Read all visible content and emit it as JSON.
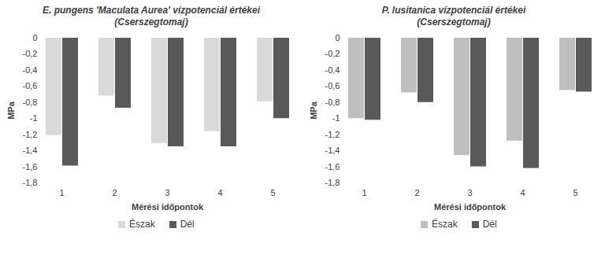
{
  "chart_data": [
    {
      "type": "bar",
      "title": "E. pungens 'Maculata Aurea' vízpotenciál értékei\n(Cserszegtomaj)",
      "x_label": "Mérési időpontok",
      "y_label": "MPa",
      "categories": [
        "1",
        "2",
        "3",
        "4",
        "5"
      ],
      "series": [
        {
          "name": "Észak",
          "color": "#d9d9d9",
          "values": [
            -1.21,
            -0.72,
            -1.31,
            -1.16,
            -0.79
          ]
        },
        {
          "name": "Dél",
          "color": "#595959",
          "values": [
            -1.59,
            -0.87,
            -1.35,
            -1.35,
            -1.0
          ]
        }
      ],
      "ylim": [
        -1.8,
        0
      ],
      "yticks": [
        0,
        {
          "value": -0.2,
          "label": "-0,2"
        },
        {
          "value": -0.4,
          "label": "-0,4"
        },
        {
          "value": -0.6,
          "label": "-0,6"
        },
        {
          "value": -0.8,
          "label": "-0,8"
        },
        -1,
        {
          "value": -1.2,
          "label": "-1,2"
        },
        {
          "value": -1.4,
          "label": "-1,4"
        },
        {
          "value": -1.6,
          "label": "-1,6"
        },
        {
          "value": -1.8,
          "label": "-1,8"
        }
      ],
      "grid": false,
      "legend": "bottom"
    },
    {
      "type": "bar",
      "title": "P. lusitanica vízpotenciál értékei\n(Cserszegtomaj)",
      "x_label": "Mérési időpontok",
      "y_label": "MPa",
      "categories": [
        "1",
        "2",
        "3",
        "4",
        "5"
      ],
      "series": [
        {
          "name": "Észak",
          "color": "#bfbfbf",
          "values": [
            -1.0,
            -0.68,
            -1.46,
            -1.28,
            -0.65
          ]
        },
        {
          "name": "Dél",
          "color": "#595959",
          "values": [
            -1.02,
            -0.8,
            -1.6,
            -1.62,
            -0.67
          ]
        }
      ],
      "ylim": [
        -1.8,
        0
      ],
      "yticks": [
        0,
        {
          "value": -0.2,
          "label": "-0,2"
        },
        {
          "value": -0.4,
          "label": "-0,4"
        },
        {
          "value": -0.6,
          "label": "-0,6"
        },
        {
          "value": -0.8,
          "label": "-0,8"
        },
        -1,
        {
          "value": -1.2,
          "label": "-1,2"
        },
        {
          "value": -1.4,
          "label": "-1,4"
        },
        {
          "value": -1.6,
          "label": "-1,6"
        },
        {
          "value": -1.8,
          "label": "-1,8"
        }
      ],
      "grid": false,
      "legend": "bottom"
    }
  ]
}
